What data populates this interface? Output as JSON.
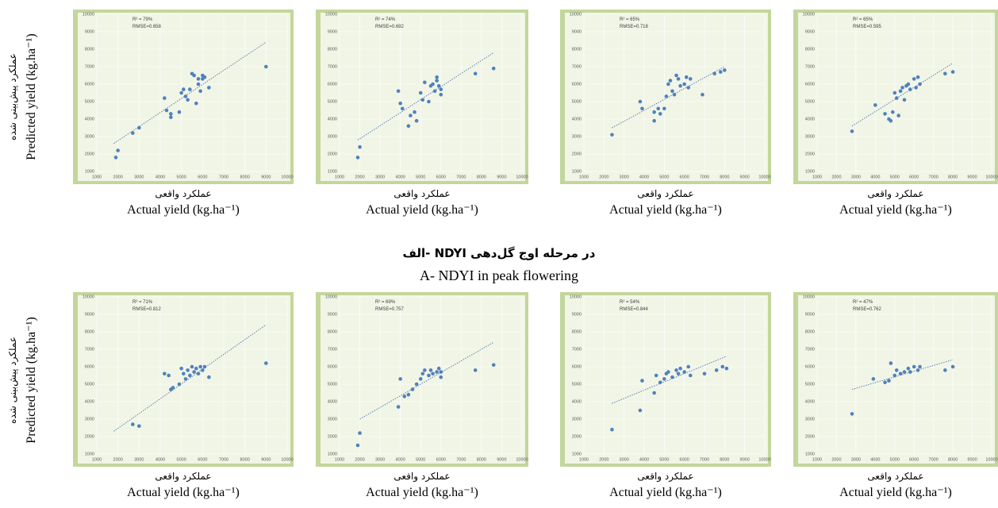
{
  "figure": {
    "rows": [
      {
        "y_label_fa": "عملکرد پیش‌بینی شده",
        "y_label": "Predicted yield (kg.ha⁻¹)"
      },
      {
        "y_label_fa": "عملکرد پیش‌بینی شده",
        "y_label": "Predicted yield (kg.ha⁻¹)"
      }
    ],
    "caption_fa": "الف- NDYI در مرحله اوج گل‌دهی",
    "caption_en": "A- NDYI in peak flowering"
  },
  "chart_data": [
    {
      "type": "scatter",
      "annotations": [
        "R² = 79%",
        "RMSE=0.658"
      ],
      "x_label_fa": "عملکرد واقعی",
      "x_label": "Actual yield (kg.ha⁻¹)",
      "xlim": [
        1000,
        10000
      ],
      "xticks": [
        1000,
        2000,
        3000,
        4000,
        5000,
        6000,
        7000,
        8000,
        9000,
        10000
      ],
      "ylim": [
        1000,
        10000
      ],
      "yticks": [
        1000,
        2000,
        3000,
        4000,
        5000,
        6000,
        7000,
        8000,
        9000,
        10000
      ],
      "grid": true,
      "color": "#4f81bd",
      "x": [
        1900,
        2000,
        2700,
        3000,
        4200,
        4300,
        4500,
        4500,
        4900,
        5000,
        5100,
        5200,
        5300,
        5400,
        5500,
        5600,
        5700,
        5800,
        5800,
        5900,
        6000,
        6000,
        6100,
        6300,
        9000
      ],
      "y": [
        1800,
        2200,
        3200,
        3500,
        5200,
        4500,
        4100,
        4300,
        4400,
        5500,
        5700,
        5300,
        5100,
        5700,
        6600,
        6500,
        4900,
        6300,
        6000,
        5600,
        6500,
        6300,
        6400,
        5800,
        7000
      ],
      "trendline": {
        "x": [
          1800,
          9000
        ],
        "y": [
          2600,
          8400
        ]
      }
    },
    {
      "type": "scatter",
      "annotations": [
        "R² = 74%",
        "RMSE=0.692"
      ],
      "x_label_fa": "عملکرد واقعی",
      "x_label": "Actual yield (kg.ha⁻¹)",
      "xlim": [
        1000,
        10000
      ],
      "xticks": [
        1000,
        2000,
        3000,
        4000,
        5000,
        6000,
        7000,
        8000,
        9000,
        10000
      ],
      "ylim": [
        1000,
        10000
      ],
      "yticks": [
        1000,
        2000,
        3000,
        4000,
        5000,
        6000,
        7000,
        8000,
        9000,
        10000
      ],
      "grid": true,
      "color": "#4f81bd",
      "x": [
        1900,
        2000,
        3900,
        4000,
        4100,
        4400,
        4500,
        4700,
        4800,
        5000,
        5100,
        5200,
        5400,
        5500,
        5600,
        5700,
        5800,
        5800,
        5900,
        6000,
        6000,
        7700,
        8600
      ],
      "y": [
        1800,
        2400,
        5600,
        4900,
        4600,
        3600,
        4200,
        4400,
        3900,
        5500,
        5100,
        6100,
        5000,
        5900,
        6000,
        5600,
        6400,
        6200,
        5900,
        5400,
        5700,
        6600,
        6900
      ],
      "trendline": {
        "x": [
          1900,
          8600
        ],
        "y": [
          2800,
          7800
        ]
      }
    },
    {
      "type": "scatter",
      "annotations": [
        "R² = 65%",
        "RMSE=0.718"
      ],
      "x_label_fa": "عملکرد واقعی",
      "x_label": "Actual yield (kg.ha⁻¹)",
      "xlim": [
        1000,
        10000
      ],
      "xticks": [
        1000,
        2000,
        3000,
        4000,
        5000,
        6000,
        7000,
        8000,
        9000,
        10000
      ],
      "ylim": [
        1000,
        10000
      ],
      "yticks": [
        1000,
        2000,
        3000,
        4000,
        5000,
        6000,
        7000,
        8000,
        9000,
        10000
      ],
      "grid": true,
      "color": "#4f81bd",
      "x": [
        2400,
        3800,
        3900,
        4500,
        4500,
        4700,
        4800,
        5000,
        5100,
        5200,
        5300,
        5400,
        5500,
        5600,
        5700,
        5800,
        6000,
        6100,
        6200,
        6300,
        6900,
        7500,
        7800,
        8000
      ],
      "y": [
        3100,
        5000,
        4600,
        3900,
        4400,
        4600,
        4300,
        4600,
        5300,
        6000,
        6200,
        5600,
        5400,
        6500,
        6300,
        5900,
        6000,
        6400,
        5800,
        6300,
        5400,
        6600,
        6700,
        6800
      ],
      "trendline": {
        "x": [
          2400,
          8000
        ],
        "y": [
          3500,
          7000
        ]
      }
    },
    {
      "type": "scatter",
      "annotations": [
        "R² = 65%",
        "RMSE=0.595"
      ],
      "x_label_fa": "عملکرد واقعی",
      "x_label": "Actual yield (kg.ha⁻¹)",
      "xlim": [
        1000,
        10000
      ],
      "xticks": [
        1000,
        2000,
        3000,
        4000,
        5000,
        6000,
        7000,
        8000,
        9000,
        10000
      ],
      "ylim": [
        1000,
        10000
      ],
      "yticks": [
        1000,
        2000,
        3000,
        4000,
        5000,
        6000,
        7000,
        8000,
        9000,
        10000
      ],
      "grid": true,
      "color": "#4f81bd",
      "x": [
        2800,
        4000,
        4500,
        4700,
        4800,
        4900,
        5000,
        5100,
        5200,
        5300,
        5400,
        5500,
        5600,
        5700,
        5800,
        6000,
        6100,
        6200,
        6300,
        7600,
        8000
      ],
      "y": [
        3300,
        4800,
        4300,
        4000,
        3900,
        4400,
        5500,
        5200,
        4200,
        5600,
        5800,
        5100,
        5900,
        6000,
        5700,
        6300,
        5800,
        6400,
        6000,
        6600,
        6700
      ],
      "trendline": {
        "x": [
          2800,
          8000
        ],
        "y": [
          3600,
          7200
        ]
      }
    },
    {
      "type": "scatter",
      "annotations": [
        "R² = 71%",
        "RMSE=0.812"
      ],
      "x_label_fa": "عملکرد واقعی",
      "x_label": "Actual yield (kg.ha⁻¹)",
      "xlim": [
        1000,
        10000
      ],
      "xticks": [
        1000,
        2000,
        3000,
        4000,
        5000,
        6000,
        7000,
        8000,
        9000,
        10000
      ],
      "ylim": [
        1000,
        10000
      ],
      "yticks": [
        1000,
        2000,
        3000,
        4000,
        5000,
        6000,
        7000,
        8000,
        9000,
        10000
      ],
      "grid": true,
      "color": "#4f81bd",
      "x": [
        2700,
        3000,
        4200,
        4400,
        4500,
        4600,
        4900,
        5000,
        5100,
        5200,
        5300,
        5400,
        5500,
        5600,
        5700,
        5800,
        5900,
        6000,
        6100,
        6300,
        9000
      ],
      "y": [
        2700,
        2600,
        5600,
        5500,
        4700,
        4800,
        5000,
        5900,
        5600,
        5300,
        5800,
        5500,
        6000,
        5700,
        5900,
        5600,
        6000,
        5800,
        6000,
        5400,
        6200
      ],
      "trendline": {
        "x": [
          1800,
          9000
        ],
        "y": [
          2300,
          8400
        ]
      }
    },
    {
      "type": "scatter",
      "annotations": [
        "R² = 69%",
        "RMSE=0.757"
      ],
      "x_label_fa": "عملکرد واقعی",
      "x_label": "Actual yield (kg.ha⁻¹)",
      "xlim": [
        1000,
        10000
      ],
      "xticks": [
        1000,
        2000,
        3000,
        4000,
        5000,
        6000,
        7000,
        8000,
        9000,
        10000
      ],
      "ylim": [
        1000,
        10000
      ],
      "yticks": [
        1000,
        2000,
        3000,
        4000,
        5000,
        6000,
        7000,
        8000,
        9000,
        10000
      ],
      "grid": true,
      "color": "#4f81bd",
      "x": [
        1900,
        2000,
        3900,
        4000,
        4200,
        4400,
        4600,
        4800,
        5000,
        5100,
        5200,
        5400,
        5500,
        5600,
        5800,
        5900,
        6000,
        6000,
        7700,
        8600
      ],
      "y": [
        1500,
        2200,
        3700,
        5300,
        4300,
        4400,
        4700,
        5000,
        5300,
        5600,
        5800,
        5500,
        5800,
        5600,
        5700,
        5900,
        5400,
        5700,
        5800,
        6100
      ],
      "trendline": {
        "x": [
          2000,
          8600
        ],
        "y": [
          3000,
          7400
        ]
      }
    },
    {
      "type": "scatter",
      "annotations": [
        "R² = 54%",
        "RMSE=0.844"
      ],
      "x_label_fa": "عملکرد واقعی",
      "x_label": "Actual yield (kg.ha⁻¹)",
      "xlim": [
        1000,
        10000
      ],
      "xticks": [
        1000,
        2000,
        3000,
        4000,
        5000,
        6000,
        7000,
        8000,
        9000,
        10000
      ],
      "ylim": [
        1000,
        10000
      ],
      "yticks": [
        1000,
        2000,
        3000,
        4000,
        5000,
        6000,
        7000,
        8000,
        9000,
        10000
      ],
      "grid": true,
      "color": "#4f81bd",
      "x": [
        2400,
        3800,
        3900,
        4500,
        4600,
        4800,
        5000,
        5100,
        5200,
        5400,
        5600,
        5700,
        5800,
        6000,
        6200,
        6300,
        7000,
        7600,
        7900,
        8100
      ],
      "y": [
        2400,
        3500,
        5200,
        4500,
        5500,
        5100,
        5300,
        5600,
        5700,
        5400,
        5800,
        5600,
        5900,
        5700,
        6000,
        5500,
        5600,
        5800,
        6000,
        5900
      ],
      "trendline": {
        "x": [
          2400,
          8100
        ],
        "y": [
          3900,
          6600
        ]
      }
    },
    {
      "type": "scatter",
      "annotations": [
        "R² = 47%",
        "RMSE=0.762"
      ],
      "x_label_fa": "عملکرد واقعی",
      "x_label": "Actual yield (kg.ha⁻¹)",
      "xlim": [
        1000,
        10000
      ],
      "xticks": [
        1000,
        2000,
        3000,
        4000,
        5000,
        6000,
        7000,
        8000,
        9000,
        10000
      ],
      "ylim": [
        1000,
        10000
      ],
      "yticks": [
        1000,
        2000,
        3000,
        4000,
        5000,
        6000,
        7000,
        8000,
        9000,
        10000
      ],
      "grid": true,
      "color": "#4f81bd",
      "x": [
        2800,
        3900,
        4500,
        4700,
        4800,
        5000,
        5100,
        5300,
        5500,
        5700,
        5800,
        6000,
        6200,
        6300,
        7600,
        8000
      ],
      "y": [
        3300,
        5300,
        5100,
        5200,
        6200,
        5500,
        5800,
        5600,
        5700,
        5900,
        5700,
        6000,
        5800,
        6000,
        5800,
        6000
      ],
      "trendline": {
        "x": [
          2800,
          8000
        ],
        "y": [
          4700,
          6400
        ]
      }
    }
  ]
}
